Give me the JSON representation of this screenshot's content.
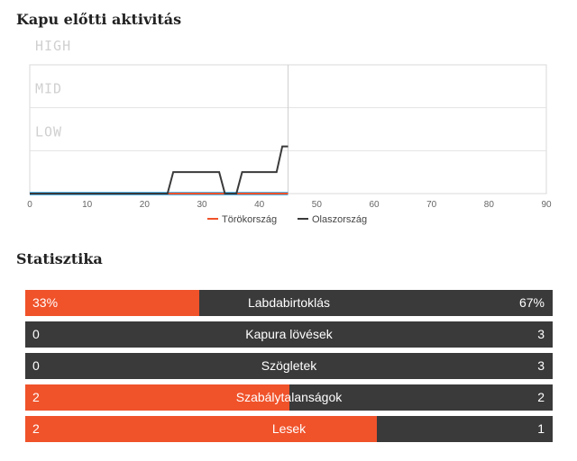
{
  "activity": {
    "title": "Kapu előtti aktivitás"
  },
  "stats": {
    "title": "Statisztika",
    "rows": [
      {
        "label": "Labdabirtoklás",
        "left": "33%",
        "right": "67%",
        "left_share": 0.33
      },
      {
        "label": "Kapura lövések",
        "left": "0",
        "right": "3",
        "left_share": 0
      },
      {
        "label": "Szögletek",
        "left": "0",
        "right": "3",
        "left_share": 0
      },
      {
        "label": "Szabálytalanságok",
        "left": "2",
        "right": "2",
        "left_share": 0.5
      },
      {
        "label": "Lesek",
        "left": "2",
        "right": "1",
        "left_share": 0.667
      }
    ]
  },
  "colors": {
    "team1": "#f0522a",
    "team2": "#3a3a3a",
    "team1_baseline": "#5ab4e6"
  },
  "chart_data": {
    "type": "line",
    "x_ticks": [
      0,
      10,
      20,
      30,
      40,
      50,
      60,
      70,
      80,
      90
    ],
    "xlim": [
      0,
      90
    ],
    "y_levels": [
      "LOW",
      "MID",
      "HIGH"
    ],
    "ylim": [
      0,
      3
    ],
    "current_minute": 45,
    "legend_position": "bottom",
    "series": [
      {
        "name": "Törökország",
        "color": "#f0522a",
        "x": [
          0,
          45
        ],
        "y": [
          0,
          0
        ]
      },
      {
        "name": "Olaszország",
        "color": "#3a3a3a",
        "x": [
          0,
          24,
          25,
          33,
          34,
          36,
          37,
          43,
          44,
          45
        ],
        "y": [
          0,
          0,
          0.5,
          0.5,
          0,
          0,
          0.5,
          0.5,
          1.1,
          1.1
        ]
      }
    ]
  }
}
